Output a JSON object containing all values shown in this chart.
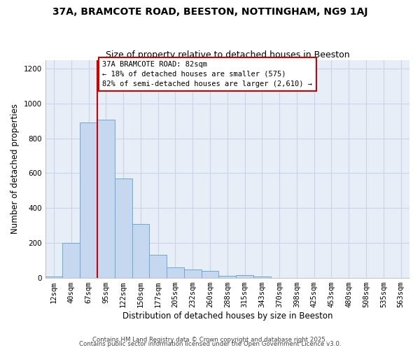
{
  "title": "37A, BRAMCOTE ROAD, BEESTON, NOTTINGHAM, NG9 1AJ",
  "subtitle": "Size of property relative to detached houses in Beeston",
  "xlabel": "Distribution of detached houses by size in Beeston",
  "ylabel": "Number of detached properties",
  "categories": [
    "12sqm",
    "40sqm",
    "67sqm",
    "95sqm",
    "122sqm",
    "150sqm",
    "177sqm",
    "205sqm",
    "232sqm",
    "260sqm",
    "288sqm",
    "315sqm",
    "343sqm",
    "370sqm",
    "398sqm",
    "425sqm",
    "453sqm",
    "480sqm",
    "508sqm",
    "535sqm",
    "563sqm"
  ],
  "bar_values": [
    5,
    200,
    890,
    905,
    570,
    308,
    133,
    60,
    48,
    40,
    10,
    15,
    5,
    0,
    0,
    0,
    0,
    0,
    0,
    0,
    0
  ],
  "bar_color": "#c5d8f0",
  "bar_edge_color": "#6aaad4",
  "marker_label": "37A BRAMCOTE ROAD: 82sqm",
  "annotation_line1": "← 18% of detached houses are smaller (575)",
  "annotation_line2": "82% of semi-detached houses are larger (2,610) →",
  "annotation_box_edge": "#cc0000",
  "vline_color": "#cc0000",
  "ylim": [
    0,
    1250
  ],
  "yticks": [
    0,
    200,
    400,
    600,
    800,
    1000,
    1200
  ],
  "footer_line1": "Contains HM Land Registry data © Crown copyright and database right 2025.",
  "footer_line2": "Contains public sector information licensed under the Open Government Licence v3.0.",
  "bg_color": "#ffffff",
  "plot_bg_color": "#e8eef8",
  "grid_color": "#c8d4e8",
  "title_fontsize": 10,
  "subtitle_fontsize": 9,
  "axis_label_fontsize": 8.5,
  "tick_fontsize": 7.5
}
